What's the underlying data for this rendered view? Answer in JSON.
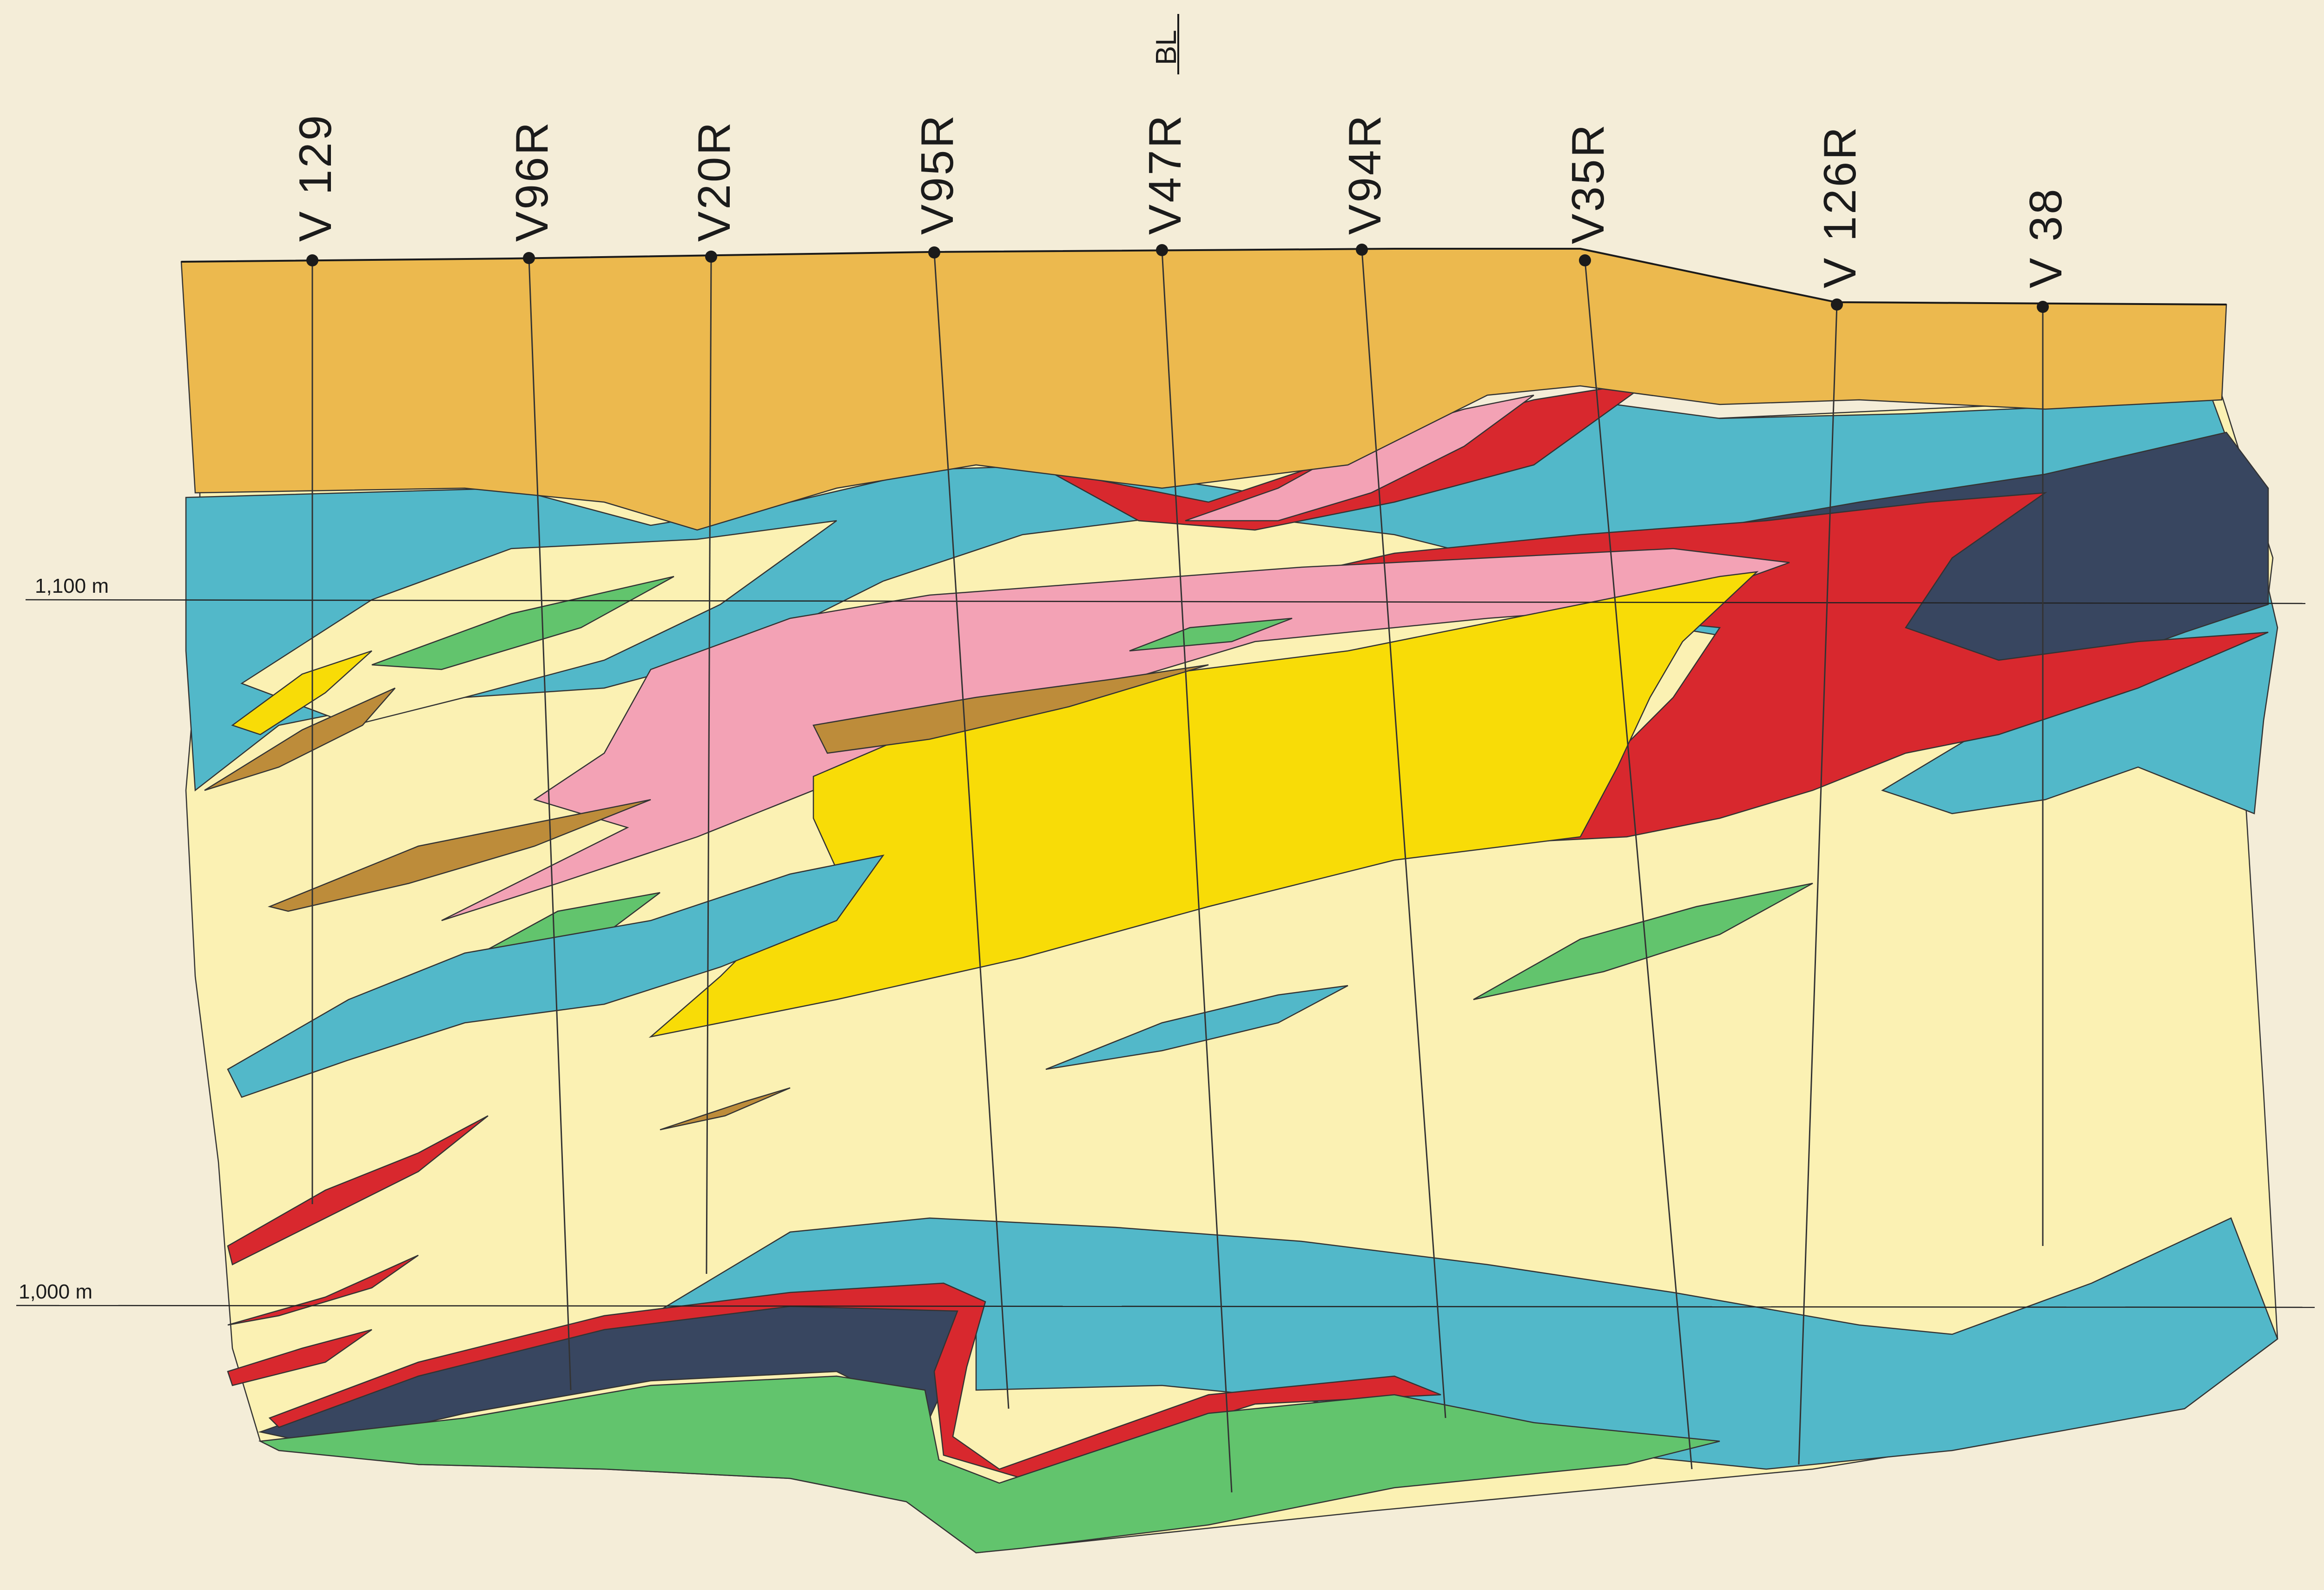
{
  "section": {
    "baseline_label": "BL",
    "elevations": [
      {
        "label": "1,100 m"
      },
      {
        "label": "1,000 m"
      }
    ],
    "drill_holes": [
      {
        "name": "V 129"
      },
      {
        "name": "V96R"
      },
      {
        "name": "V20R"
      },
      {
        "name": "V95R"
      },
      {
        "name": "V47R"
      },
      {
        "name": "V94R"
      },
      {
        "name": "V35R"
      },
      {
        "name": "V 126R"
      },
      {
        "name": "V 38"
      }
    ],
    "colors": {
      "paper": "#f4edd8",
      "cream": "#fbf1b3",
      "overburden": "#ecb94e",
      "cyan": "#52b8c9",
      "yellow": "#f8dc07",
      "pink": "#f3a2b5",
      "red": "#d8282e",
      "navy": "#384660",
      "green": "#62c46d",
      "brown": "#bd8c3a"
    }
  }
}
